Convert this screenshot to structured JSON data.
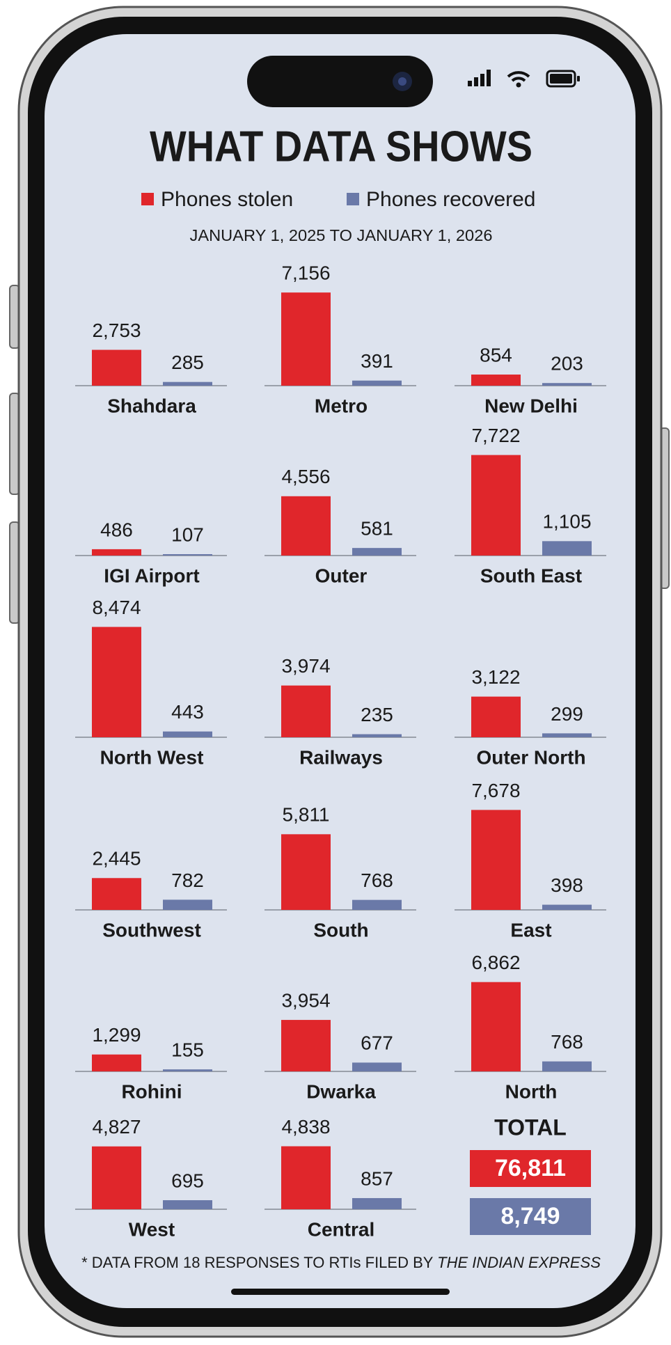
{
  "chart_data": {
    "type": "bar",
    "title": "WHAT DATA SHOWS",
    "subtitle": "JANUARY 1, 2025 TO JANUARY 1, 2026",
    "categories": [
      "Shahdara",
      "Metro",
      "New Delhi",
      "IGI Airport",
      "Outer",
      "South East",
      "North West",
      "Railways",
      "Outer North",
      "Southwest",
      "South",
      "East",
      "Rohini",
      "Dwarka",
      "North",
      "West",
      "Central"
    ],
    "series": [
      {
        "name": "Phones stolen",
        "color": "#e0262b",
        "values": [
          2753,
          7156,
          854,
          486,
          4556,
          7722,
          8474,
          3974,
          3122,
          2445,
          5811,
          7678,
          1299,
          3954,
          6862,
          4827,
          4838
        ],
        "value_labels": [
          "2,753",
          "7,156",
          "854",
          "486",
          "4,556",
          "7,722",
          "8,474",
          "3,974",
          "3,122",
          "2,445",
          "5,811",
          "7,678",
          "1,299",
          "3,954",
          "6,862",
          "4,827",
          "4,838"
        ]
      },
      {
        "name": "Phones recovered",
        "color": "#6a79a8",
        "values": [
          285,
          391,
          203,
          107,
          581,
          1105,
          443,
          235,
          299,
          782,
          768,
          398,
          155,
          677,
          768,
          695,
          857
        ],
        "value_labels": [
          "285",
          "391",
          "203",
          "107",
          "581",
          "1,105",
          "443",
          "235",
          "299",
          "782",
          "768",
          "398",
          "155",
          "677",
          "768",
          "695",
          "857"
        ]
      }
    ],
    "total": {
      "label": "TOTAL",
      "values": [
        76811,
        8749
      ],
      "value_labels": [
        "76,811",
        "8,749"
      ]
    },
    "note": "* DATA FROM 18 RESPONSES TO RTIs FILED BY ",
    "note_source": "THE INDIAN EXPRESS"
  }
}
